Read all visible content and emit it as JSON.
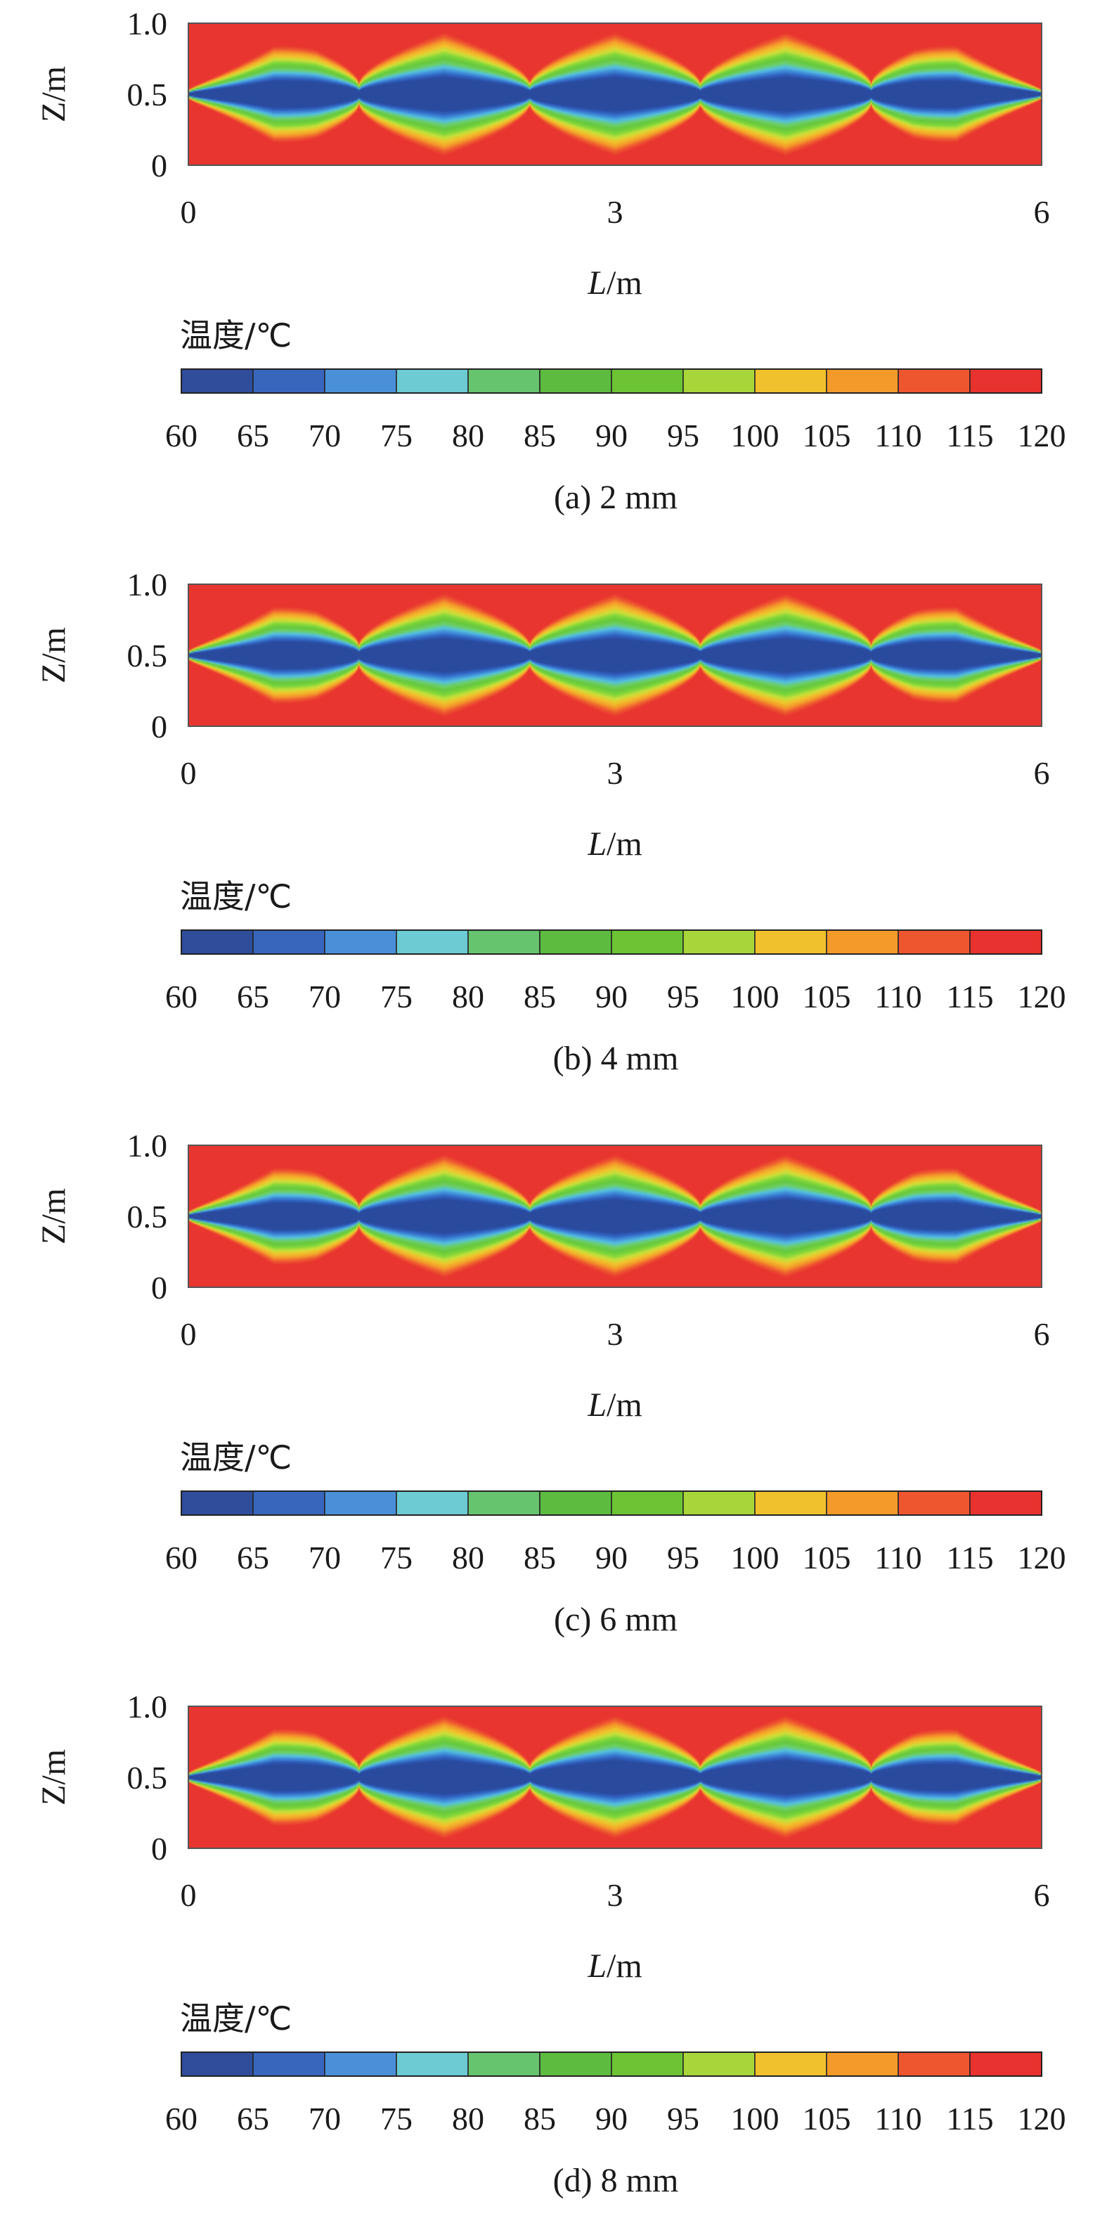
{
  "chart_data": [
    {
      "type": "heatmap",
      "caption": "(a) 2 mm",
      "xlabel": "L/m",
      "ylabel": "Z/m",
      "xlim": [
        0,
        6
      ],
      "ylim": [
        0,
        1.0
      ],
      "xticks": [
        "0",
        "3",
        "6"
      ],
      "yticks": [
        "0",
        "0.5",
        "1.0"
      ],
      "colorbar_title": "温度/℃",
      "colorbar_ticks": [
        "60",
        "65",
        "70",
        "75",
        "80",
        "85",
        "90",
        "95",
        "100",
        "105",
        "110",
        "115",
        "120"
      ],
      "cusp_x": [
        1.2,
        2.4,
        3.6,
        4.8
      ],
      "min_temp": 60,
      "max_temp": 120
    },
    {
      "type": "heatmap",
      "caption": "(b) 4 mm",
      "xlabel": "L/m",
      "ylabel": "Z/m",
      "xlim": [
        0,
        6
      ],
      "ylim": [
        0,
        1.0
      ],
      "xticks": [
        "0",
        "3",
        "6"
      ],
      "yticks": [
        "0",
        "0.5",
        "1.0"
      ],
      "colorbar_title": "温度/℃",
      "colorbar_ticks": [
        "60",
        "65",
        "70",
        "75",
        "80",
        "85",
        "90",
        "95",
        "100",
        "105",
        "110",
        "115",
        "120"
      ],
      "cusp_x": [
        1.2,
        2.4,
        3.6,
        4.8
      ],
      "min_temp": 60,
      "max_temp": 120
    },
    {
      "type": "heatmap",
      "caption": "(c) 6 mm",
      "xlabel": "L/m",
      "ylabel": "Z/m",
      "xlim": [
        0,
        6
      ],
      "ylim": [
        0,
        1.0
      ],
      "xticks": [
        "0",
        "3",
        "6"
      ],
      "yticks": [
        "0",
        "0.5",
        "1.0"
      ],
      "colorbar_title": "温度/℃",
      "colorbar_ticks": [
        "60",
        "65",
        "70",
        "75",
        "80",
        "85",
        "90",
        "95",
        "100",
        "105",
        "110",
        "115",
        "120"
      ],
      "cusp_x": [
        1.2,
        2.4,
        3.6,
        4.8
      ],
      "min_temp": 60,
      "max_temp": 120
    },
    {
      "type": "heatmap",
      "caption": "(d) 8 mm",
      "xlabel": "L/m",
      "ylabel": "Z/m",
      "xlim": [
        0,
        6
      ],
      "ylim": [
        0,
        1.0
      ],
      "xticks": [
        "0",
        "3",
        "6"
      ],
      "yticks": [
        "0",
        "0.5",
        "1.0"
      ],
      "colorbar_title": "温度/℃",
      "colorbar_ticks": [
        "60",
        "65",
        "70",
        "75",
        "80",
        "85",
        "90",
        "95",
        "100",
        "105",
        "110",
        "115",
        "120"
      ],
      "cusp_x": [
        1.2,
        2.4,
        3.6,
        4.8
      ],
      "min_temp": 60,
      "max_temp": 120
    }
  ],
  "colors": {
    "bands": [
      "#2f4d9b",
      "#3866bd",
      "#4a90d9",
      "#6ccbd3",
      "#66c46e",
      "#5dbb3f",
      "#6cc334",
      "#a8d63a",
      "#f0c12c",
      "#f39a2b",
      "#ee5630",
      "#e8322f"
    ],
    "gradient": [
      "#2a4a9e",
      "#2f5fbd",
      "#3f8ad9",
      "#55c2de",
      "#6ccf6a",
      "#66c83c",
      "#7ed63a",
      "#c9e03a",
      "#f2c22c",
      "#f49a2b",
      "#ef5a30",
      "#e8352f"
    ]
  }
}
